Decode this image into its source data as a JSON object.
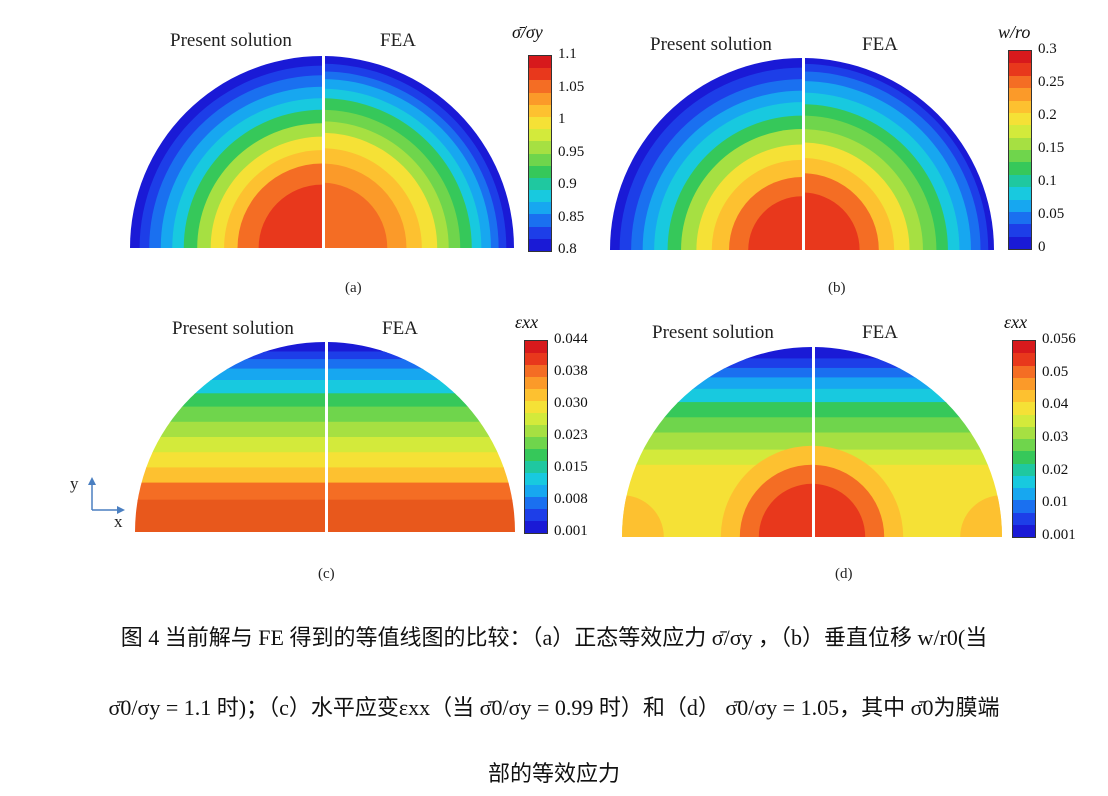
{
  "panels": [
    {
      "id": "a",
      "label": "(a)",
      "left_title": "Present solution",
      "right_title": "FEA",
      "colorbar_title": "σ̄/σy",
      "colorbar_ticks": [
        "1.1",
        "1.05",
        "1",
        "0.95",
        "0.9",
        "0.85",
        "0.8"
      ]
    },
    {
      "id": "b",
      "label": "(b)",
      "left_title": "Present solution",
      "right_title": "FEA",
      "colorbar_title": "w/ro",
      "colorbar_ticks": [
        "0.3",
        "0.25",
        "0.2",
        "0.15",
        "0.1",
        "0.05",
        "0"
      ]
    },
    {
      "id": "c",
      "label": "(c)",
      "left_title": "Present solution",
      "right_title": "FEA",
      "colorbar_title": "εxx",
      "colorbar_ticks": [
        "0.044",
        "0.038",
        "0.030",
        "0.023",
        "0.015",
        "0.008",
        "0.001"
      ]
    },
    {
      "id": "d",
      "label": "(d)",
      "left_title": "Present solution",
      "right_title": "FEA",
      "colorbar_title": "εxx",
      "colorbar_ticks": [
        "0.056",
        "0.05",
        "0.04",
        "0.03",
        "0.02",
        "0.01",
        "0.001"
      ]
    }
  ],
  "axes_labels": {
    "y": "y",
    "x": "x"
  },
  "colormap": [
    "#d7191c",
    "#e8381c",
    "#f46d24",
    "#fb9a29",
    "#fdc130",
    "#f5e136",
    "#d3ea3b",
    "#a6e042",
    "#6fd54c",
    "#36c85a",
    "#1fc8a0",
    "#18c9df",
    "#17a7f0",
    "#1a70f0",
    "#1d3ee8",
    "#1a1ad6"
  ],
  "caption": {
    "line1": "图 4  当前解与 FE 得到的等值线图的比较：（a）正态等效应力 σ̄/σy ，（b）垂直位移 w/r0(当",
    "line2": "σ̄0/σy = 1.1 时)；（c）水平应变εxx（当 σ̄0/σy = 0.99 时）和（d） σ̄0/σy  = 1.05，其中 σ̄0为膜端",
    "line3": "部的等效应力"
  }
}
